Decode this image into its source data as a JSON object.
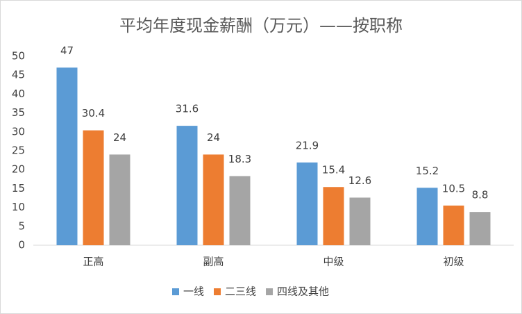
{
  "chart_data": {
    "type": "bar",
    "title": "平均年度现金薪酬（万元）——按职称",
    "categories": [
      "正高",
      "副高",
      "中级",
      "初级"
    ],
    "series": [
      {
        "name": "一线",
        "color": "#5b9bd5",
        "values": [
          47,
          31.6,
          21.9,
          15.2
        ]
      },
      {
        "name": "二三线",
        "color": "#ed7d31",
        "values": [
          30.4,
          24,
          15.4,
          10.5
        ]
      },
      {
        "name": "四线及其他",
        "color": "#a5a5a5",
        "values": [
          24,
          18.3,
          12.6,
          8.8
        ]
      }
    ],
    "ylim": [
      0,
      50
    ],
    "yticks": [
      0,
      5,
      10,
      15,
      20,
      25,
      30,
      35,
      40,
      45,
      50
    ],
    "grid": false,
    "legend": "bottom",
    "data_labels": true
  }
}
